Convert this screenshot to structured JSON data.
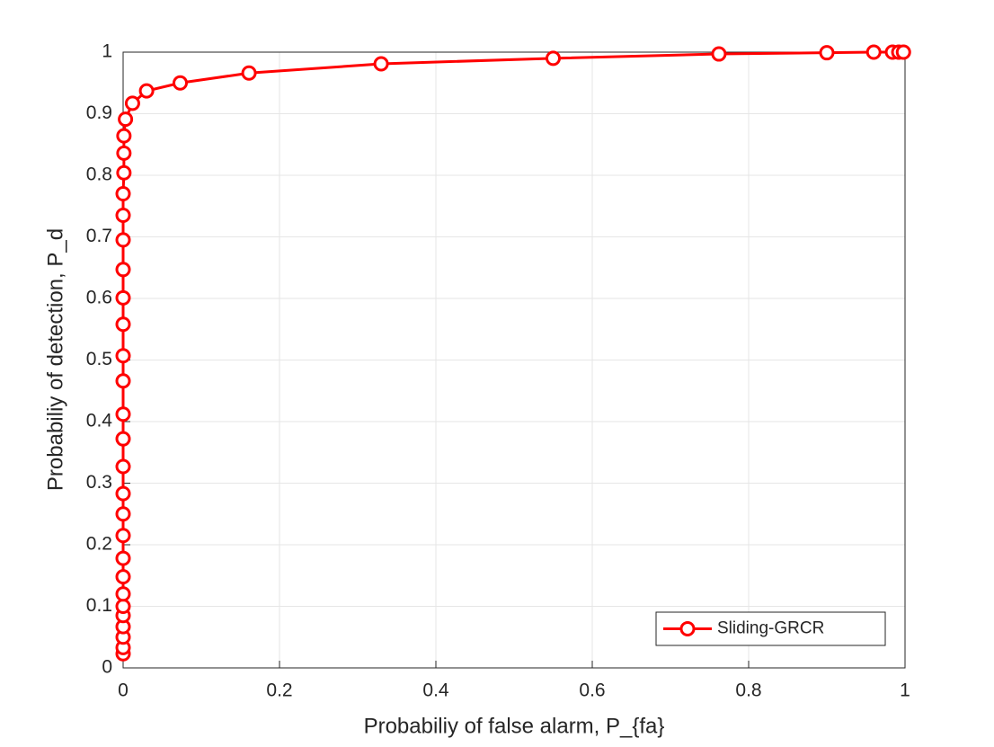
{
  "chart_data": {
    "type": "line",
    "xlabel": "Probabiliy of false alarm, P_{fa}",
    "ylabel": "Probabiliy of detection, P_d",
    "x": [
      0,
      0,
      0,
      0,
      0,
      0,
      0,
      0,
      0,
      0,
      0,
      0,
      0,
      0,
      0,
      0,
      0,
      0,
      0,
      0,
      0,
      0,
      0,
      0.001,
      0.001,
      0.001,
      0.003,
      0.012,
      0.03,
      0.073,
      0.161,
      0.33,
      0.55,
      0.762,
      0.9,
      0.96,
      0.984,
      0.992,
      0.998
    ],
    "series": [
      {
        "name": "Sliding-GRCR",
        "color": "#ff0000",
        "values": [
          0.023,
          0.033,
          0.05,
          0.067,
          0.085,
          0.1,
          0.12,
          0.148,
          0.178,
          0.215,
          0.25,
          0.283,
          0.327,
          0.372,
          0.412,
          0.466,
          0.507,
          0.558,
          0.601,
          0.647,
          0.695,
          0.735,
          0.77,
          0.804,
          0.836,
          0.864,
          0.891,
          0.917,
          0.937,
          0.95,
          0.966,
          0.981,
          0.99,
          0.997,
          0.999,
          1,
          1,
          1,
          1
        ]
      }
    ],
    "xlim": [
      0,
      1
    ],
    "ylim": [
      0,
      1
    ],
    "xticks": [
      0,
      0.2,
      0.4,
      0.6,
      0.8,
      1
    ],
    "yticks": [
      0,
      0.1,
      0.2,
      0.3,
      0.4,
      0.5,
      0.6,
      0.7,
      0.8,
      0.9,
      1
    ],
    "grid": true,
    "legend": "lower right"
  }
}
